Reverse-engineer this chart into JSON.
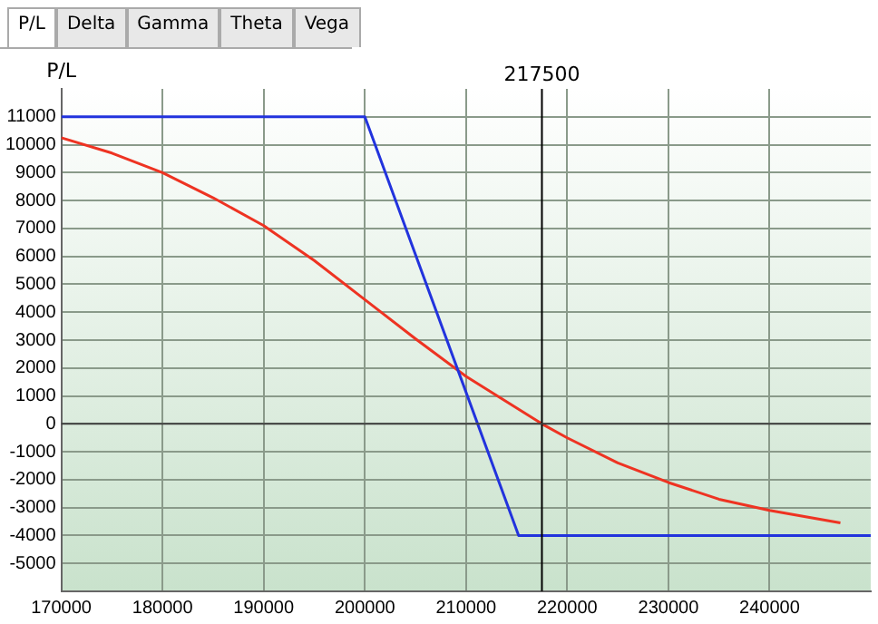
{
  "chart_data": {
    "type": "line",
    "ylabel": "P/L",
    "annotations": [
      "P/L",
      "Delta",
      "Gamma",
      "Theta",
      "Vega"
    ],
    "xlim": [
      170000,
      250000
    ],
    "xticks": [
      170000,
      180000,
      190000,
      200000,
      210000,
      220000,
      230000,
      240000
    ],
    "ylim": [
      -6000,
      12000
    ],
    "yticks": [
      -5000,
      -4000,
      -3000,
      -2000,
      -1000,
      0,
      1000,
      2000,
      3000,
      4000,
      5000,
      6000,
      7000,
      8000,
      9000,
      10000,
      11000
    ],
    "grid": true,
    "legend": false,
    "marker": "none",
    "line_style": "solid",
    "ref_lines": [
      {
        "axis": "x",
        "value": 217500,
        "label": "217500",
        "color": "#000000"
      },
      {
        "axis": "y",
        "value": 0,
        "color": "#404040"
      }
    ],
    "series": [
      {
        "color": "#2233dd",
        "x": [
          170000,
          200000,
          215200,
          250000
        ],
        "values": [
          11000,
          11000,
          -4000,
          -4000
        ]
      },
      {
        "color": "#ee3322",
        "x": [
          170000,
          175000,
          180000,
          185000,
          190000,
          195000,
          200000,
          205000,
          210000,
          217500,
          220000,
          225000,
          230000,
          235000,
          240000,
          247000
        ],
        "values": [
          10250,
          9700,
          9000,
          8100,
          7100,
          5850,
          4450,
          3050,
          1700,
          0,
          -500,
          -1400,
          -2100,
          -2700,
          -3100,
          -3550
        ]
      }
    ]
  }
}
